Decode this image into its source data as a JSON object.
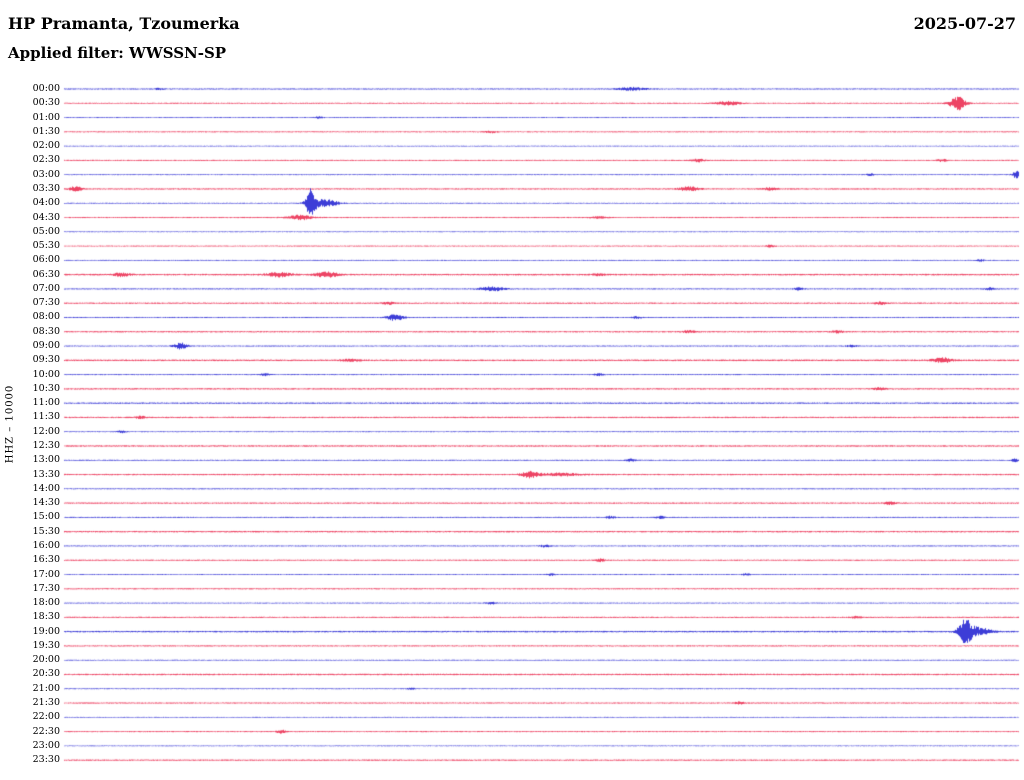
{
  "header": {
    "station": "HP Pramanta, Tzoumerka",
    "date": "2025-07-27",
    "filter_label": "Applied filter: WWSSN-SP",
    "channel_scale": "HHZ – 10000"
  },
  "chart_data": {
    "type": "seismogram",
    "title": "HP Pramanta, Tzoumerka",
    "date": "2025-07-27",
    "filter": "WWSSN-SP",
    "channel": "HHZ",
    "gain": "10000",
    "row_interval_minutes": 30,
    "trace_alternation": [
      "blue",
      "red"
    ],
    "colors": {
      "blue": "#0b0bcd",
      "red": "#e8143c"
    },
    "rows": [
      {
        "time": "00:00",
        "color": "blue",
        "noise": 0.6,
        "events": [
          [
            0.1,
            0.8,
            0.005
          ],
          [
            0.595,
            1.6,
            0.014
          ]
        ]
      },
      {
        "time": "00:30",
        "color": "red",
        "noise": 0.6,
        "events": [
          [
            0.695,
            2.0,
            0.012
          ],
          [
            0.936,
            7.0,
            0.008
          ]
        ]
      },
      {
        "time": "01:00",
        "color": "blue",
        "noise": 0.5,
        "events": [
          [
            0.266,
            1.0,
            0.004
          ]
        ]
      },
      {
        "time": "01:30",
        "color": "red",
        "noise": 0.6,
        "events": [
          [
            0.447,
            1.0,
            0.006
          ]
        ]
      },
      {
        "time": "02:00",
        "color": "blue",
        "noise": 0.45,
        "events": []
      },
      {
        "time": "02:30",
        "color": "red",
        "noise": 0.6,
        "events": [
          [
            0.664,
            1.5,
            0.006
          ],
          [
            0.92,
            1.2,
            0.005
          ]
        ]
      },
      {
        "time": "03:00",
        "color": "blue",
        "noise": 0.5,
        "events": [
          [
            0.845,
            1.0,
            0.004
          ],
          [
            0.998,
            3.5,
            0.004
          ]
        ]
      },
      {
        "time": "03:30",
        "color": "red",
        "noise": 0.7,
        "events": [
          [
            0.012,
            2.5,
            0.006
          ],
          [
            0.655,
            2.2,
            0.01
          ],
          [
            0.74,
            1.2,
            0.008
          ]
        ]
      },
      {
        "time": "04:00",
        "color": "blue",
        "noise": 0.5,
        "events": [
          [
            0.258,
            13.0,
            0.005
          ],
          [
            0.272,
            4.0,
            0.014
          ]
        ]
      },
      {
        "time": "04:30",
        "color": "red",
        "noise": 0.6,
        "events": [
          [
            0.247,
            2.5,
            0.012
          ],
          [
            0.56,
            1.0,
            0.008
          ]
        ]
      },
      {
        "time": "05:00",
        "color": "blue",
        "noise": 0.45,
        "events": []
      },
      {
        "time": "05:30",
        "color": "red",
        "noise": 0.55,
        "events": [
          [
            0.74,
            1.0,
            0.005
          ]
        ]
      },
      {
        "time": "06:00",
        "color": "blue",
        "noise": 0.5,
        "events": [
          [
            0.96,
            1.0,
            0.004
          ]
        ]
      },
      {
        "time": "06:30",
        "color": "red",
        "noise": 0.8,
        "events": [
          [
            0.06,
            1.8,
            0.008
          ],
          [
            0.225,
            2.2,
            0.012
          ],
          [
            0.275,
            2.5,
            0.012
          ],
          [
            0.56,
            1.0,
            0.006
          ]
        ]
      },
      {
        "time": "07:00",
        "color": "blue",
        "noise": 0.6,
        "events": [
          [
            0.448,
            2.2,
            0.012
          ],
          [
            0.77,
            1.2,
            0.005
          ],
          [
            0.97,
            1.2,
            0.005
          ]
        ]
      },
      {
        "time": "07:30",
        "color": "red",
        "noise": 0.7,
        "events": [
          [
            0.34,
            1.2,
            0.006
          ],
          [
            0.855,
            1.3,
            0.006
          ]
        ]
      },
      {
        "time": "08:00",
        "color": "blue",
        "noise": 0.55,
        "events": [
          [
            0.347,
            3.5,
            0.008
          ],
          [
            0.6,
            1.0,
            0.005
          ]
        ]
      },
      {
        "time": "08:30",
        "color": "red",
        "noise": 0.7,
        "events": [
          [
            0.655,
            1.3,
            0.006
          ],
          [
            0.81,
            1.2,
            0.006
          ]
        ]
      },
      {
        "time": "09:00",
        "color": "blue",
        "noise": 0.55,
        "events": [
          [
            0.122,
            3.0,
            0.007
          ],
          [
            0.825,
            1.0,
            0.005
          ]
        ]
      },
      {
        "time": "09:30",
        "color": "red",
        "noise": 0.8,
        "events": [
          [
            0.3,
            1.0,
            0.01
          ],
          [
            0.92,
            2.5,
            0.01
          ]
        ]
      },
      {
        "time": "10:00",
        "color": "blue",
        "noise": 0.55,
        "events": [
          [
            0.21,
            1.2,
            0.005
          ],
          [
            0.56,
            1.0,
            0.005
          ]
        ]
      },
      {
        "time": "10:30",
        "color": "red",
        "noise": 0.75,
        "events": [
          [
            0.855,
            1.2,
            0.006
          ]
        ]
      },
      {
        "time": "11:00",
        "color": "blue",
        "noise": 0.7,
        "events": []
      },
      {
        "time": "11:30",
        "color": "red",
        "noise": 0.7,
        "events": [
          [
            0.08,
            1.2,
            0.005
          ]
        ]
      },
      {
        "time": "12:00",
        "color": "blue",
        "noise": 0.5,
        "events": [
          [
            0.06,
            1.2,
            0.004
          ]
        ]
      },
      {
        "time": "12:30",
        "color": "red",
        "noise": 0.75,
        "events": []
      },
      {
        "time": "13:00",
        "color": "blue",
        "noise": 0.55,
        "events": [
          [
            0.594,
            1.2,
            0.005
          ],
          [
            0.996,
            1.5,
            0.004
          ]
        ]
      },
      {
        "time": "13:30",
        "color": "red",
        "noise": 0.7,
        "events": [
          [
            0.488,
            3.0,
            0.009
          ],
          [
            0.52,
            1.5,
            0.02
          ]
        ]
      },
      {
        "time": "14:00",
        "color": "blue",
        "noise": 0.55,
        "events": []
      },
      {
        "time": "14:30",
        "color": "red",
        "noise": 0.7,
        "events": [
          [
            0.865,
            1.2,
            0.006
          ]
        ]
      },
      {
        "time": "15:00",
        "color": "blue",
        "noise": 0.55,
        "events": [
          [
            0.572,
            1.2,
            0.005
          ],
          [
            0.625,
            1.2,
            0.005
          ]
        ]
      },
      {
        "time": "15:30",
        "color": "red",
        "noise": 0.75,
        "events": []
      },
      {
        "time": "16:00",
        "color": "blue",
        "noise": 0.55,
        "events": [
          [
            0.504,
            1.2,
            0.005
          ]
        ]
      },
      {
        "time": "16:30",
        "color": "red",
        "noise": 0.65,
        "events": [
          [
            0.562,
            1.3,
            0.005
          ]
        ]
      },
      {
        "time": "17:00",
        "color": "blue",
        "noise": 0.5,
        "events": [
          [
            0.51,
            1.0,
            0.004
          ],
          [
            0.715,
            1.0,
            0.004
          ]
        ]
      },
      {
        "time": "17:30",
        "color": "red",
        "noise": 0.65,
        "events": []
      },
      {
        "time": "18:00",
        "color": "blue",
        "noise": 0.5,
        "events": [
          [
            0.447,
            1.2,
            0.005
          ]
        ]
      },
      {
        "time": "18:30",
        "color": "red",
        "noise": 0.65,
        "events": [
          [
            0.83,
            1.2,
            0.005
          ]
        ]
      },
      {
        "time": "19:00",
        "color": "blue",
        "noise": 0.75,
        "events": [
          [
            0.944,
            11.0,
            0.007
          ],
          [
            0.957,
            4.0,
            0.014
          ]
        ]
      },
      {
        "time": "19:30",
        "color": "red",
        "noise": 0.65,
        "events": []
      },
      {
        "time": "20:00",
        "color": "blue",
        "noise": 0.5,
        "events": []
      },
      {
        "time": "20:30",
        "color": "red",
        "noise": 0.75,
        "events": []
      },
      {
        "time": "21:00",
        "color": "blue",
        "noise": 0.5,
        "events": [
          [
            0.363,
            1.0,
            0.004
          ]
        ]
      },
      {
        "time": "21:30",
        "color": "red",
        "noise": 0.65,
        "events": [
          [
            0.708,
            1.2,
            0.005
          ]
        ]
      },
      {
        "time": "22:00",
        "color": "blue",
        "noise": 0.45,
        "events": []
      },
      {
        "time": "22:30",
        "color": "red",
        "noise": 0.6,
        "events": [
          [
            0.227,
            2.0,
            0.004
          ]
        ]
      },
      {
        "time": "23:00",
        "color": "blue",
        "noise": 0.45,
        "events": []
      },
      {
        "time": "23:30",
        "color": "red",
        "noise": 0.7,
        "events": []
      }
    ]
  }
}
